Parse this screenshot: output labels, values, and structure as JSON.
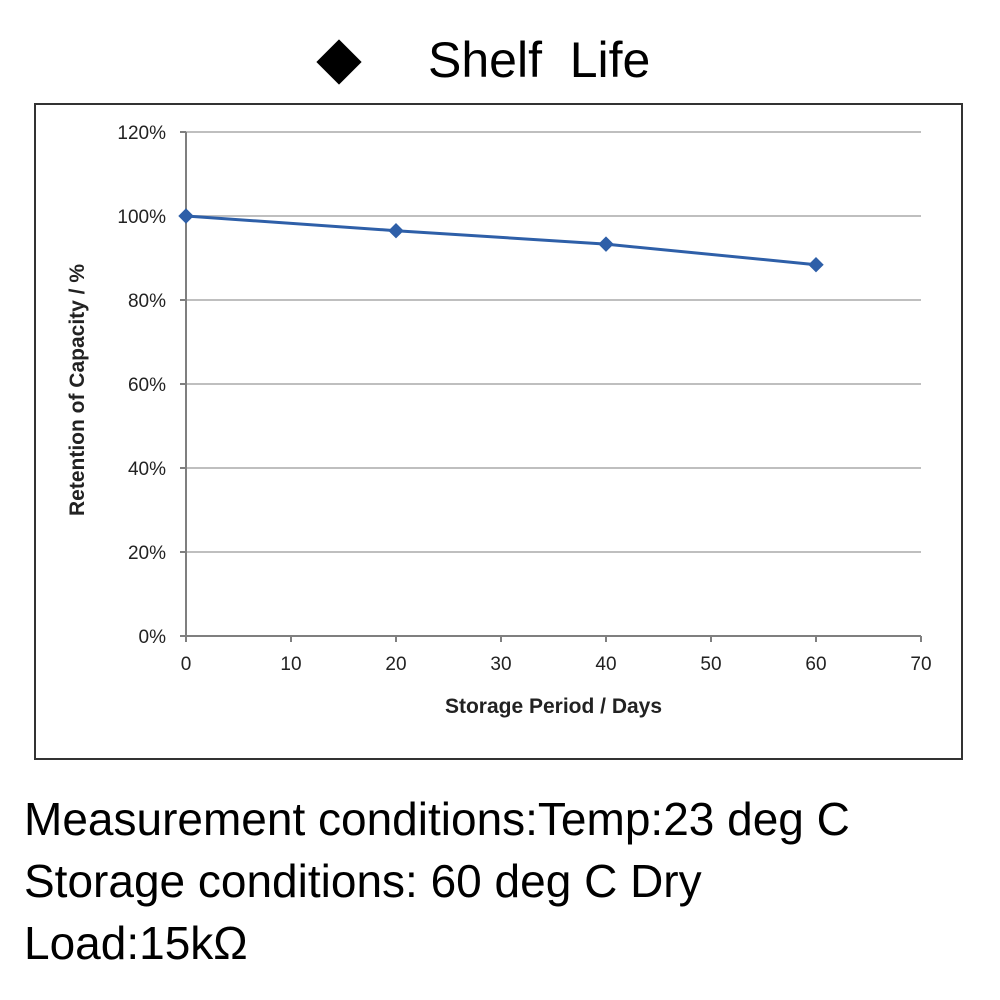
{
  "header": {
    "title": "Shelf  Life"
  },
  "chart_data": {
    "type": "line",
    "title": "Shelf  Life",
    "xlabel": "Storage Period / Days",
    "ylabel": "Retention of Capacity / %",
    "xlim": [
      0,
      70
    ],
    "ylim": [
      0,
      120
    ],
    "x_ticks": [
      0,
      10,
      20,
      30,
      40,
      50,
      60,
      70
    ],
    "y_ticks": [
      0,
      20,
      40,
      60,
      80,
      100,
      120
    ],
    "x_tick_labels": [
      "0",
      "10",
      "20",
      "30",
      "40",
      "50",
      "60",
      "70"
    ],
    "y_tick_labels": [
      "0%",
      "20%",
      "40%",
      "60%",
      "80%",
      "100%",
      "120%"
    ],
    "grid": true,
    "series": [
      {
        "x": [
          0,
          20,
          40,
          60
        ],
        "values": [
          100,
          96.5,
          93.3,
          88.4
        ],
        "color": "#2e5fa8",
        "marker": "diamond"
      }
    ]
  },
  "notes": [
    "Measurement conditions:Temp:23 deg C",
    "Storage conditions: 60 deg C Dry",
    "Load:15kΩ"
  ],
  "colors": {
    "series": "#2e5fa8",
    "grid": "#bfbfbf",
    "axis": "#7f7f7f",
    "frame": "#333333"
  }
}
